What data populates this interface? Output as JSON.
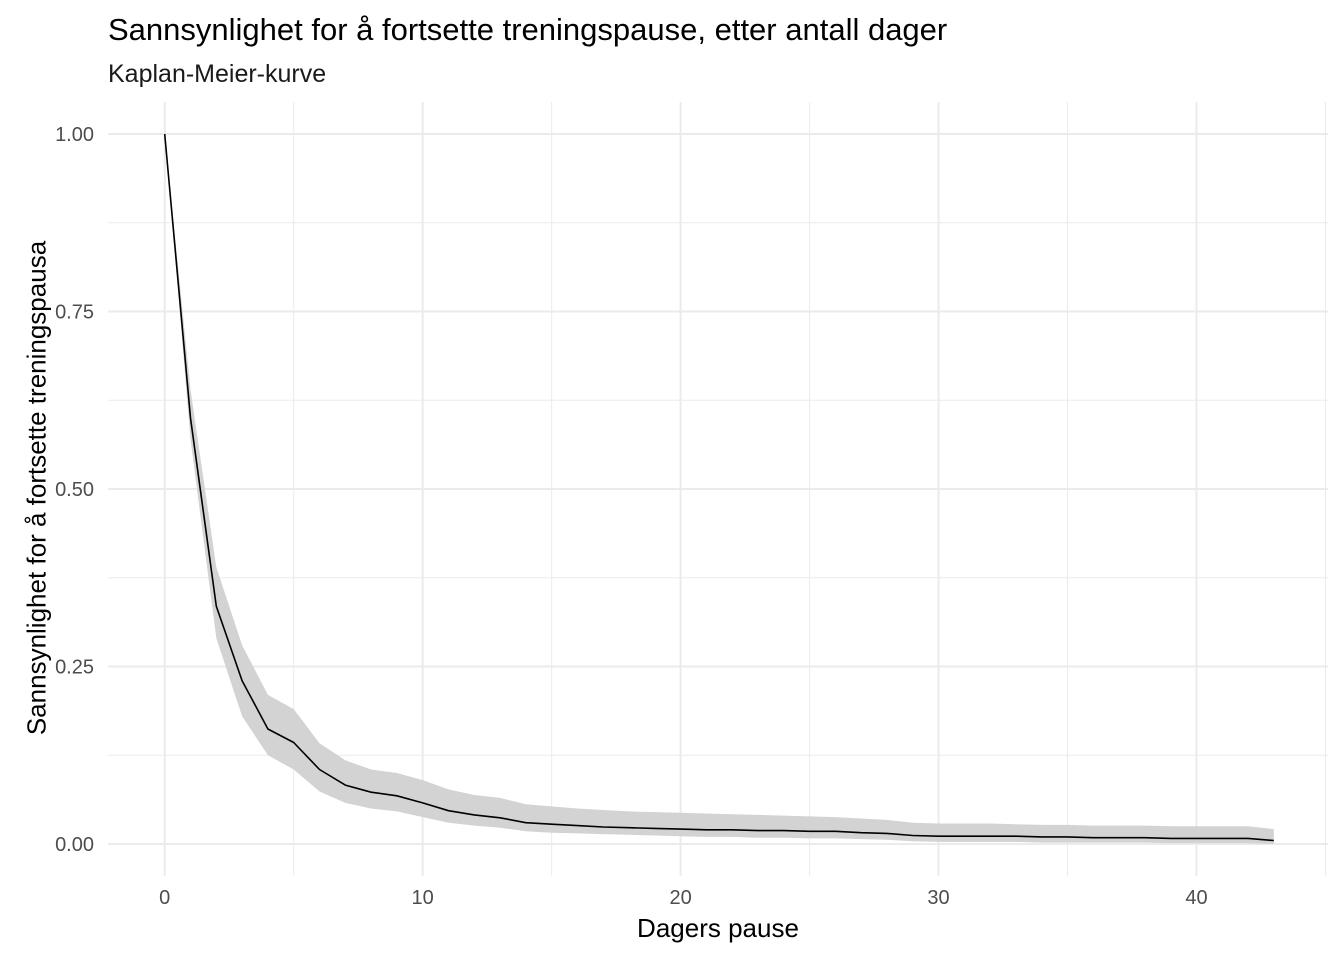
{
  "chart_data": {
    "type": "line",
    "title": "Sannsynlighet for å fortsette treningspause, etter antall dager",
    "subtitle": "Kaplan-Meier-kurve",
    "xlabel": "Dagers pause",
    "ylabel": "Sannsynlighet for å fortsette treningspausa",
    "xlim": [
      -2.2,
      45.1
    ],
    "ylim": [
      -0.045,
      1.045
    ],
    "x_ticks": [
      0,
      10,
      20,
      30,
      40
    ],
    "x_tick_labels": [
      "0",
      "10",
      "20",
      "30",
      "40"
    ],
    "x_minor_ticks": [
      5,
      15,
      25,
      35,
      45
    ],
    "y_ticks": [
      0,
      0.25,
      0.5,
      0.75,
      1.0
    ],
    "y_tick_labels": [
      "0.00",
      "0.25",
      "0.50",
      "0.75",
      "1.00"
    ],
    "y_minor_ticks": [
      0.125,
      0.375,
      0.625,
      0.875
    ],
    "grid": true,
    "colors": {
      "line": "#000000",
      "ribbon": "#d3d3d3",
      "grid": "#ebebeb"
    },
    "series": [
      {
        "x": [
          0,
          1,
          2,
          3,
          4,
          5,
          6,
          7,
          8,
          9,
          10,
          11,
          12,
          13,
          14,
          15,
          16,
          17,
          18,
          19,
          20,
          21,
          22,
          23,
          24,
          25,
          26,
          27,
          28,
          29,
          30,
          31,
          32,
          33,
          34,
          35,
          36,
          37,
          38,
          39,
          40,
          41,
          42,
          43
        ],
        "y": [
          1.0,
          0.6,
          0.335,
          0.23,
          0.162,
          0.143,
          0.105,
          0.083,
          0.073,
          0.068,
          0.058,
          0.047,
          0.041,
          0.037,
          0.03,
          0.028,
          0.026,
          0.024,
          0.023,
          0.022,
          0.021,
          0.02,
          0.02,
          0.019,
          0.019,
          0.018,
          0.018,
          0.016,
          0.015,
          0.012,
          0.011,
          0.011,
          0.011,
          0.011,
          0.01,
          0.01,
          0.009,
          0.009,
          0.009,
          0.008,
          0.008,
          0.008,
          0.008,
          0.005
        ],
        "lower": [
          1.0,
          0.57,
          0.29,
          0.18,
          0.125,
          0.105,
          0.074,
          0.058,
          0.05,
          0.046,
          0.038,
          0.03,
          0.026,
          0.023,
          0.018,
          0.016,
          0.015,
          0.014,
          0.013,
          0.012,
          0.011,
          0.01,
          0.01,
          0.009,
          0.009,
          0.008,
          0.008,
          0.007,
          0.006,
          0.004,
          0.003,
          0.003,
          0.003,
          0.003,
          0.002,
          0.002,
          0.002,
          0.002,
          0.002,
          0.001,
          0.001,
          0.001,
          0.001,
          0.0
        ],
        "upper": [
          1.0,
          0.64,
          0.39,
          0.28,
          0.21,
          0.19,
          0.142,
          0.118,
          0.105,
          0.1,
          0.09,
          0.077,
          0.069,
          0.065,
          0.056,
          0.053,
          0.05,
          0.048,
          0.046,
          0.045,
          0.044,
          0.043,
          0.042,
          0.041,
          0.04,
          0.039,
          0.038,
          0.036,
          0.034,
          0.03,
          0.029,
          0.029,
          0.029,
          0.028,
          0.027,
          0.027,
          0.026,
          0.026,
          0.026,
          0.025,
          0.025,
          0.025,
          0.025,
          0.021
        ]
      }
    ]
  }
}
